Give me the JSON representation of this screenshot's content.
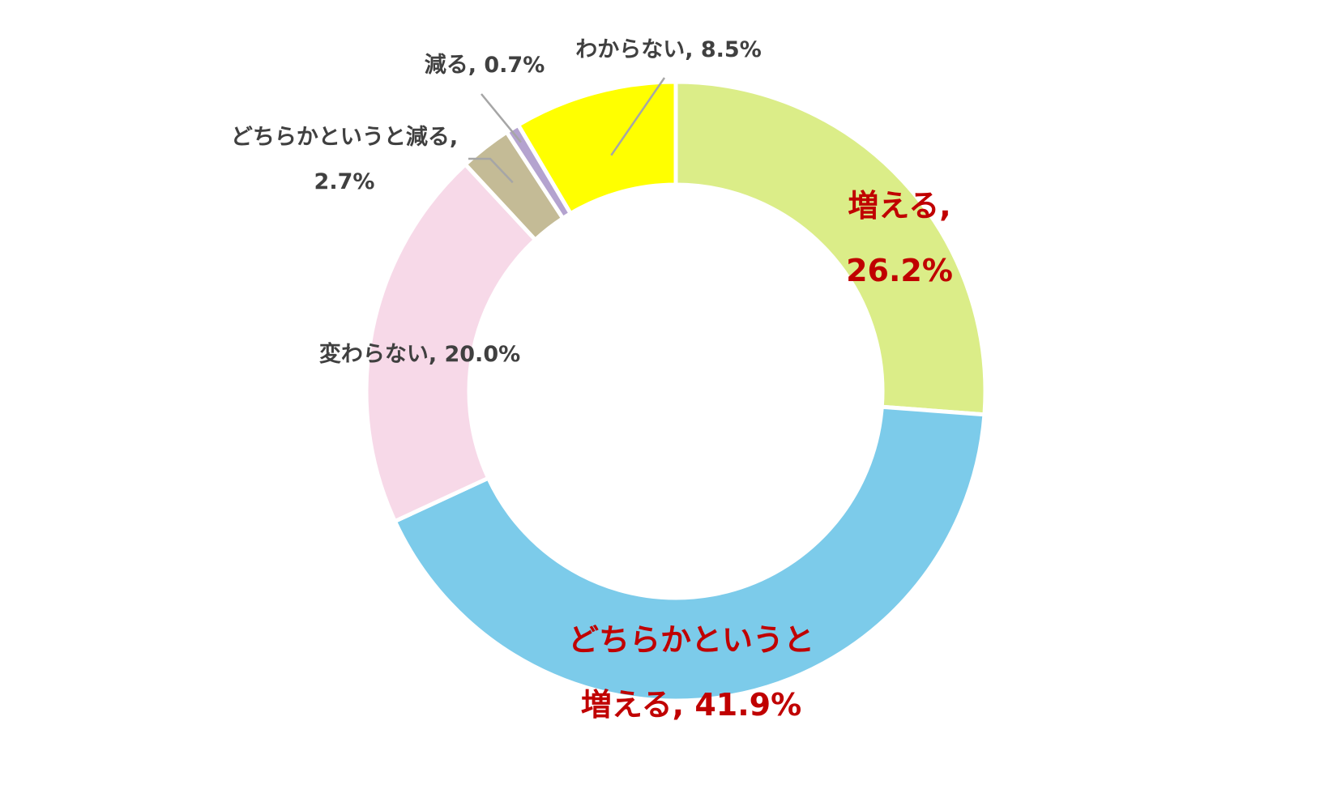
{
  "chart_data": {
    "type": "pie",
    "variant": "donut",
    "title": "",
    "legend": "none",
    "slices": [
      {
        "label": "増える",
        "value": 26.2,
        "display_value": "26.2%",
        "color": "#dbed88",
        "label_color": "#c00000",
        "label_lines": [
          "増える,",
          "26.2%"
        ]
      },
      {
        "label": "どちらかというと増える",
        "value": 41.9,
        "display_value": "41.9%",
        "color": "#7ccbea",
        "label_color": "#c00000",
        "label_lines": [
          "どちらかというと",
          "増える, 41.9%"
        ]
      },
      {
        "label": "変わらない",
        "value": 20.0,
        "display_value": "20.0%",
        "color": "#f7d9e8",
        "label_color": "#404040",
        "label_lines": [
          "変わらない, 20.0%"
        ]
      },
      {
        "label": "どちらかというと減る",
        "value": 2.7,
        "display_value": "2.7%",
        "color": "#c4bb96",
        "label_color": "#404040",
        "label_lines": [
          "どちらかというと減る,",
          "2.7%"
        ]
      },
      {
        "label": "減る",
        "value": 0.7,
        "display_value": "0.7%",
        "color": "#b4a3cf",
        "label_color": "#404040",
        "label_lines": [
          "減る, 0.7%"
        ]
      },
      {
        "label": "わからない",
        "value": 8.5,
        "display_value": "8.5%",
        "color": "#ffff00",
        "label_color": "#404040",
        "label_lines": [
          "わからない, 8.5%"
        ]
      }
    ]
  }
}
